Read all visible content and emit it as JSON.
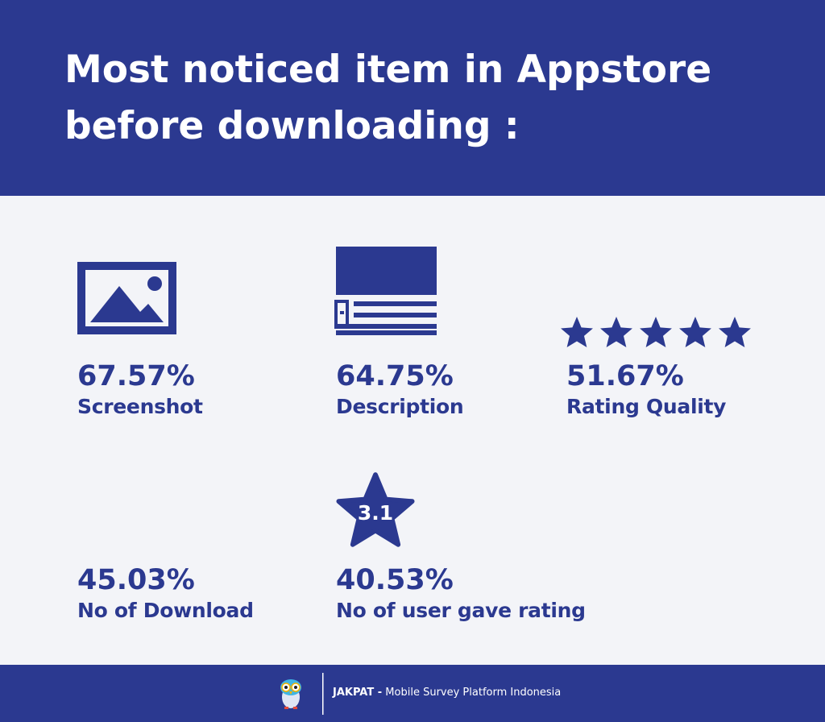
{
  "header": {
    "title": "Most noticed item in Appstore before downloading :"
  },
  "items": [
    {
      "value": "67.57%",
      "label": "Screenshot"
    },
    {
      "value": "64.75%",
      "label": "Description"
    },
    {
      "value": "51.67%",
      "label": "Rating Quality"
    },
    {
      "value": "45.03%",
      "label": "No of Download"
    },
    {
      "value": "40.53%",
      "label": "No of user gave rating"
    }
  ],
  "rating_badge": "3.1",
  "footer": {
    "brand": "JAKPAT -",
    "tagline": "Mobile Survey Platform Indonesia"
  }
}
